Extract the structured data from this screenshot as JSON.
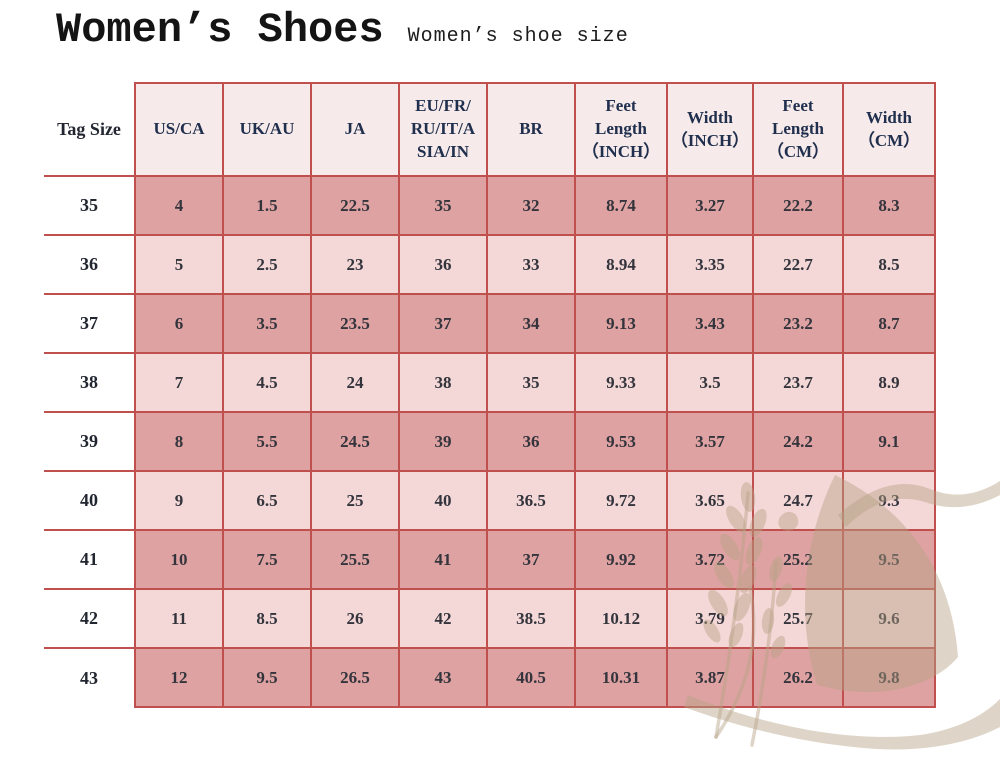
{
  "page": {
    "title": "Women’s Shoes",
    "subtitle": "Women’s shoe size"
  },
  "colors": {
    "table_border": "#c0504d",
    "row_dark": "#dfa2a2",
    "row_light": "#f4d8d8",
    "header_bg": "#f7eaea",
    "header_text": "#1f2f4d",
    "cell_text": "#33343c",
    "watermark": "#b5a284"
  },
  "table": {
    "columns": [
      "Tag Size",
      "US/CA",
      "UK/AU",
      "JA",
      "EU/FR/\nRU/IT/A\nSIA/IN",
      "BR",
      "Feet\nLength\n（INCH）",
      "Width\n（INCH）",
      "Feet\nLength\n（CM）",
      "Width\n（CM）"
    ],
    "rows": [
      {
        "tag": "35",
        "values": [
          "4",
          "1.5",
          "22.5",
          "35",
          "32",
          "8.74",
          "3.27",
          "22.2",
          "8.3"
        ]
      },
      {
        "tag": "36",
        "values": [
          "5",
          "2.5",
          "23",
          "36",
          "33",
          "8.94",
          "3.35",
          "22.7",
          "8.5"
        ]
      },
      {
        "tag": "37",
        "values": [
          "6",
          "3.5",
          "23.5",
          "37",
          "34",
          "9.13",
          "3.43",
          "23.2",
          "8.7"
        ]
      },
      {
        "tag": "38",
        "values": [
          "7",
          "4.5",
          "24",
          "38",
          "35",
          "9.33",
          "3.5",
          "23.7",
          "8.9"
        ]
      },
      {
        "tag": "39",
        "values": [
          "8",
          "5.5",
          "24.5",
          "39",
          "36",
          "9.53",
          "3.57",
          "24.2",
          "9.1"
        ]
      },
      {
        "tag": "40",
        "values": [
          "9",
          "6.5",
          "25",
          "40",
          "36.5",
          "9.72",
          "3.65",
          "24.7",
          "9.3"
        ]
      },
      {
        "tag": "41",
        "values": [
          "10",
          "7.5",
          "25.5",
          "41",
          "37",
          "9.92",
          "3.72",
          "25.2",
          "9.5"
        ]
      },
      {
        "tag": "42",
        "values": [
          "11",
          "8.5",
          "26",
          "42",
          "38.5",
          "10.12",
          "3.79",
          "25.7",
          "9.6"
        ]
      },
      {
        "tag": "43",
        "values": [
          "12",
          "9.5",
          "26.5",
          "43",
          "40.5",
          "10.31",
          "3.87",
          "26.2",
          "9.8"
        ]
      }
    ]
  },
  "watermark": {
    "name": "wheat-ear-and-sail"
  }
}
